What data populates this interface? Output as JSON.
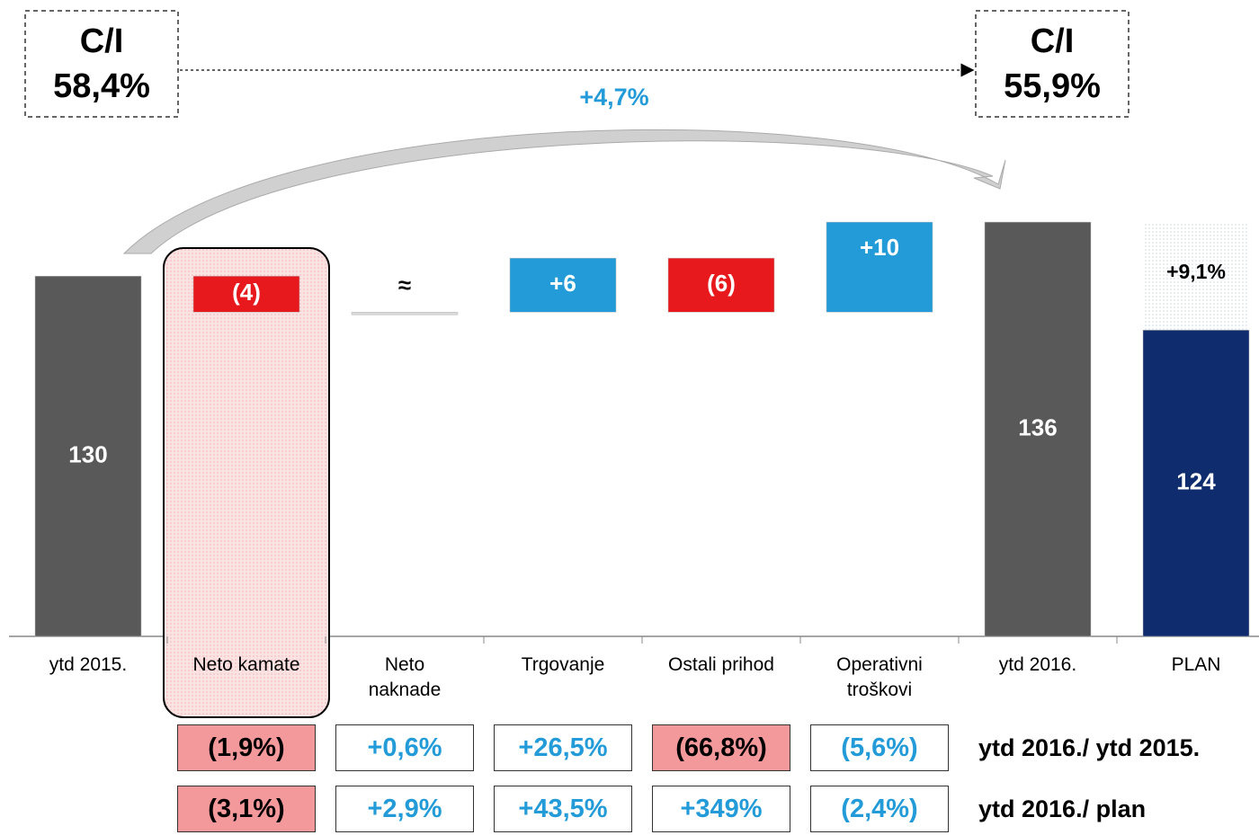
{
  "chart_data": {
    "type": "waterfall",
    "categories": [
      "ytd 2015.",
      "Neto kamate",
      "Neto naknade",
      "Trgovanje",
      "Ostali prihod",
      "Operativni troškovi",
      "ytd 2016.",
      "PLAN"
    ],
    "values": [
      130,
      -4,
      0,
      6,
      -6,
      10,
      136,
      124
    ],
    "value_labels": [
      "130",
      "(4)",
      "≈",
      "+6",
      "(6)",
      "+10",
      "136",
      "124"
    ],
    "totals": [
      true,
      false,
      false,
      false,
      false,
      false,
      true,
      true
    ],
    "colors": [
      "#595959",
      "#e8191c",
      "#d9d9d9",
      "#239bd8",
      "#e8191c",
      "#239bd8",
      "#595959",
      "#0f2c6e"
    ],
    "ylim": [
      90,
      140
    ],
    "highlight_category": 1,
    "plan_gap_label": "+9,1%",
    "ci_start": {
      "title": "C/I",
      "value": "58,4%"
    },
    "ci_end": {
      "title": "C/I",
      "value": "55,9%"
    },
    "growth_label": "+4,7%",
    "table": {
      "rows": [
        {
          "label": "ytd 2016./ ytd 2015.",
          "cells": [
            "(1,9%)",
            "+0,6%",
            "+26,5%",
            "(66,8%)",
            "(5,6%)"
          ],
          "highlight": [
            true,
            false,
            false,
            true,
            false
          ]
        },
        {
          "label": "ytd 2016./ plan",
          "cells": [
            "(3,1%)",
            "+2,9%",
            "+43,5%",
            "+349%",
            "(2,4%)"
          ],
          "highlight": [
            true,
            false,
            false,
            false,
            false
          ]
        }
      ]
    }
  }
}
